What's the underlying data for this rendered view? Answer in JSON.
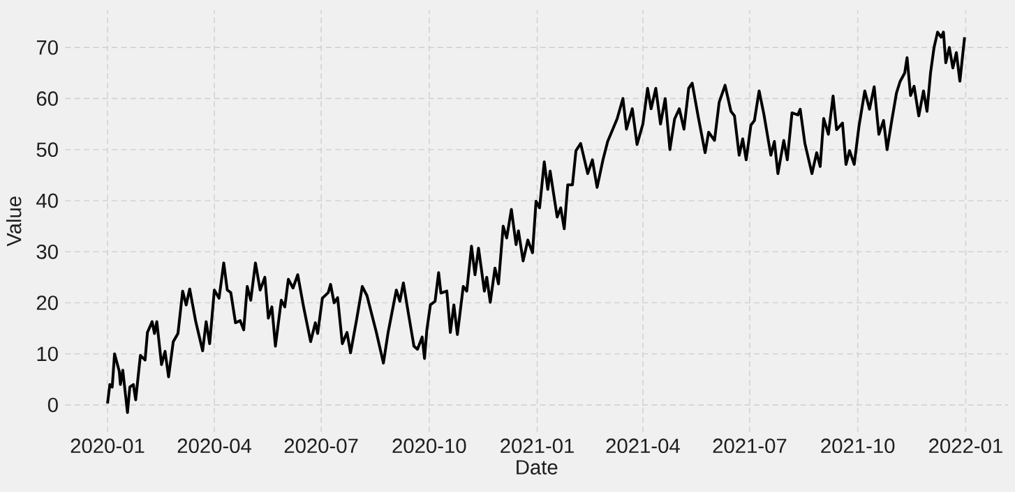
{
  "chart_data": {
    "type": "line",
    "xlabel": "Date",
    "ylabel": "Value",
    "xlim": [
      "2019-11-26",
      "2022-02-06"
    ],
    "ylim": [
      -5.3,
      77.3
    ],
    "xticks": [
      "2020-01",
      "2020-04",
      "2020-07",
      "2020-10",
      "2021-01",
      "2021-04",
      "2021-07",
      "2021-10",
      "2022-01"
    ],
    "yticks": [
      0,
      10,
      20,
      30,
      40,
      50,
      60,
      70
    ],
    "grid": true,
    "line_style": "solid",
    "series": [
      {
        "color": "#000000",
        "x": [
          "2020-01-01",
          "2020-01-03",
          "2020-01-05",
          "2020-01-07",
          "2020-01-11",
          "2020-01-12",
          "2020-01-14",
          "2020-01-18",
          "2020-01-20",
          "2020-01-23",
          "2020-01-25",
          "2020-01-29",
          "2020-02-02",
          "2020-02-04",
          "2020-02-08",
          "2020-02-10",
          "2020-02-12",
          "2020-02-16",
          "2020-02-19",
          "2020-02-22",
          "2020-02-26",
          "2020-03-01",
          "2020-03-05",
          "2020-03-08",
          "2020-03-11",
          "2020-03-16",
          "2020-03-22",
          "2020-03-25",
          "2020-03-28",
          "2020-04-01",
          "2020-04-05",
          "2020-04-09",
          "2020-04-12",
          "2020-04-15",
          "2020-04-19",
          "2020-04-23",
          "2020-04-26",
          "2020-04-29",
          "2020-05-02",
          "2020-05-06",
          "2020-05-10",
          "2020-05-14",
          "2020-05-17",
          "2020-05-20",
          "2020-05-23",
          "2020-05-28",
          "2020-05-31",
          "2020-06-03",
          "2020-06-07",
          "2020-06-11",
          "2020-06-16",
          "2020-06-22",
          "2020-06-26",
          "2020-06-28",
          "2020-07-02",
          "2020-07-07",
          "2020-07-09",
          "2020-07-12",
          "2020-07-15",
          "2020-07-19",
          "2020-07-23",
          "2020-07-26",
          "2020-07-31",
          "2020-08-05",
          "2020-08-09",
          "2020-08-17",
          "2020-08-23",
          "2020-08-27",
          "2020-09-03",
          "2020-09-06",
          "2020-09-09",
          "2020-09-13",
          "2020-09-18",
          "2020-09-21",
          "2020-09-25",
          "2020-09-27",
          "2020-09-29",
          "2020-10-02",
          "2020-10-06",
          "2020-10-09",
          "2020-10-11",
          "2020-10-16",
          "2020-10-19",
          "2020-10-22",
          "2020-10-25",
          "2020-10-30",
          "2020-11-02",
          "2020-11-06",
          "2020-11-09",
          "2020-11-12",
          "2020-11-17",
          "2020-11-19",
          "2020-11-22",
          "2020-11-26",
          "2020-11-29",
          "2020-12-03",
          "2020-12-06",
          "2020-12-10",
          "2020-12-14",
          "2020-12-16",
          "2020-12-20",
          "2020-12-24",
          "2020-12-28",
          "2020-12-31",
          "2021-01-03",
          "2021-01-07",
          "2021-01-10",
          "2021-01-12",
          "2021-01-15",
          "2021-01-18",
          "2021-01-21",
          "2021-01-24",
          "2021-01-27",
          "2021-01-31",
          "2021-02-03",
          "2021-02-07",
          "2021-02-13",
          "2021-02-17",
          "2021-02-21",
          "2021-02-26",
          "2021-03-02",
          "2021-03-10",
          "2021-03-15",
          "2021-03-18",
          "2021-03-23",
          "2021-03-27",
          "2021-04-01",
          "2021-04-05",
          "2021-04-08",
          "2021-04-12",
          "2021-04-16",
          "2021-04-20",
          "2021-04-24",
          "2021-04-28",
          "2021-05-02",
          "2021-05-06",
          "2021-05-10",
          "2021-05-13",
          "2021-05-18",
          "2021-05-24",
          "2021-05-27",
          "2021-06-01",
          "2021-06-05",
          "2021-06-10",
          "2021-06-15",
          "2021-06-18",
          "2021-06-22",
          "2021-06-25",
          "2021-06-28",
          "2021-07-02",
          "2021-07-05",
          "2021-07-09",
          "2021-07-13",
          "2021-07-19",
          "2021-07-22",
          "2021-07-25",
          "2021-07-30",
          "2021-08-02",
          "2021-08-06",
          "2021-08-11",
          "2021-08-13",
          "2021-08-17",
          "2021-08-23",
          "2021-08-27",
          "2021-08-30",
          "2021-09-02",
          "2021-09-06",
          "2021-09-10",
          "2021-09-13",
          "2021-09-18",
          "2021-09-21",
          "2021-09-24",
          "2021-09-28",
          "2021-10-02",
          "2021-10-07",
          "2021-10-11",
          "2021-10-15",
          "2021-10-19",
          "2021-10-23",
          "2021-10-26",
          "2021-10-30",
          "2021-11-03",
          "2021-11-06",
          "2021-11-10",
          "2021-11-12",
          "2021-11-15",
          "2021-11-18",
          "2021-11-22",
          "2021-11-26",
          "2021-11-29",
          "2021-12-02",
          "2021-12-05",
          "2021-12-08",
          "2021-12-11",
          "2021-12-13",
          "2021-12-15",
          "2021-12-18",
          "2021-12-21",
          "2021-12-24",
          "2021-12-27",
          "2021-12-31"
        ],
        "values": [
          0.3,
          4,
          3.5,
          10,
          6.6,
          4,
          6.8,
          -1.5,
          3.5,
          4,
          1,
          9.7,
          8.8,
          14.2,
          16.3,
          14,
          16.3,
          7.9,
          10.5,
          5.5,
          12.4,
          14,
          22.3,
          19.6,
          22.7,
          16.5,
          10.6,
          16.3,
          12,
          22.5,
          20.9,
          27.8,
          22.5,
          22,
          16.1,
          16.5,
          14.7,
          23.2,
          20.5,
          27.8,
          22.5,
          25,
          17,
          19.2,
          11.5,
          20.5,
          19.2,
          24.6,
          22.9,
          25.5,
          19.2,
          12.4,
          16.1,
          14,
          20.9,
          22,
          23.6,
          20,
          21,
          12,
          14.2,
          10.2,
          16.5,
          23.2,
          21.4,
          14.2,
          8.2,
          14.2,
          22.5,
          20.3,
          23.9,
          18.3,
          11.5,
          10.9,
          13.3,
          9.1,
          14.7,
          19.6,
          20.3,
          25.9,
          21.9,
          22.3,
          14.2,
          19.6,
          13.8,
          23.2,
          22.3,
          31.1,
          25.5,
          30.7,
          22.3,
          25,
          20.1,
          26.8,
          23.7,
          35,
          32.7,
          38.3,
          31.4,
          34.1,
          28.2,
          32.3,
          29.8,
          39.9,
          38.6,
          47.6,
          42.2,
          45.8,
          41.3,
          36.8,
          38.6,
          34.5,
          43.1,
          43.1,
          49.8,
          51.2,
          45.3,
          48,
          42.6,
          48,
          51.6,
          56,
          60,
          54,
          58,
          51,
          55,
          62,
          58,
          62,
          55,
          60,
          50,
          56,
          58,
          54,
          62,
          63,
          56.6,
          49.4,
          53.4,
          51.8,
          59.3,
          62.6,
          57.5,
          56.6,
          48.9,
          52.1,
          48,
          54.8,
          55.7,
          61.5,
          57,
          48.9,
          51.6,
          45.3,
          51.8,
          48,
          57.2,
          56.8,
          57.9,
          51.2,
          45.3,
          49.4,
          46.7,
          56.1,
          53,
          60.5,
          53.9,
          55.2,
          47.1,
          49.8,
          47.1,
          54.5,
          61.5,
          57.9,
          62.3,
          53,
          55.7,
          50,
          55.7,
          61.1,
          63.3,
          65,
          68,
          60.6,
          62.4,
          56.6,
          61.5,
          57.5,
          65,
          70,
          73,
          72,
          73,
          67,
          70,
          66,
          69,
          63.4,
          72
        ]
      }
    ]
  }
}
